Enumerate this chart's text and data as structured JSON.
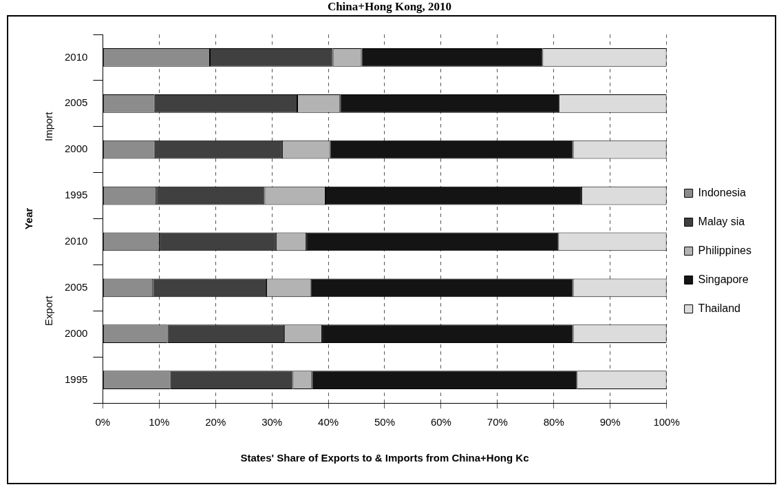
{
  "chart_data": {
    "type": "bar",
    "orientation": "horizontal",
    "stacked": true,
    "title": "China+Hong Kong, 2010",
    "xlabel": "States' Share of Exports to & Imports from China+Hong Kc",
    "ylabel": "Year",
    "annotations": [
      "Import",
      "Export"
    ],
    "categories": [
      "2010",
      "2005",
      "2000",
      "1995",
      "2010",
      "2005",
      "2000",
      "1995"
    ],
    "series": [
      {
        "name": "Indonesia",
        "color": "#8c8c8c",
        "values": [
          19.0,
          9.2,
          9.2,
          9.5,
          10.1,
          8.9,
          11.5,
          12.0
        ]
      },
      {
        "name": "Malay sia",
        "color": "#404040",
        "values": [
          21.8,
          25.3,
          22.6,
          19.2,
          20.6,
          20.1,
          20.7,
          21.7
        ]
      },
      {
        "name": "Philippines",
        "color": "#b3b3b3",
        "values": [
          5.1,
          7.6,
          8.5,
          10.8,
          5.4,
          7.9,
          6.7,
          3.4
        ]
      },
      {
        "name": "Singapore",
        "color": "#141414",
        "values": [
          32.1,
          38.8,
          43.1,
          45.4,
          44.7,
          46.5,
          44.5,
          47.0
        ]
      },
      {
        "name": "Thailand",
        "color": "#dcdcdc",
        "values": [
          22.0,
          19.1,
          16.6,
          15.1,
          19.2,
          16.6,
          16.6,
          15.9
        ]
      }
    ],
    "xlim": [
      0,
      100
    ],
    "xticks": [
      {
        "value": 0,
        "label": "0%"
      },
      {
        "value": 10,
        "label": "10%"
      },
      {
        "value": 20,
        "label": "20%"
      },
      {
        "value": 30,
        "label": "30%"
      },
      {
        "value": 40,
        "label": "40%"
      },
      {
        "value": 50,
        "label": "50%"
      },
      {
        "value": 60,
        "label": "60%"
      },
      {
        "value": 70,
        "label": "70%"
      },
      {
        "value": 80,
        "label": "80%"
      },
      {
        "value": 90,
        "label": "90%"
      },
      {
        "value": 100,
        "label": "100%"
      }
    ],
    "grid": "x",
    "legend": "right"
  }
}
